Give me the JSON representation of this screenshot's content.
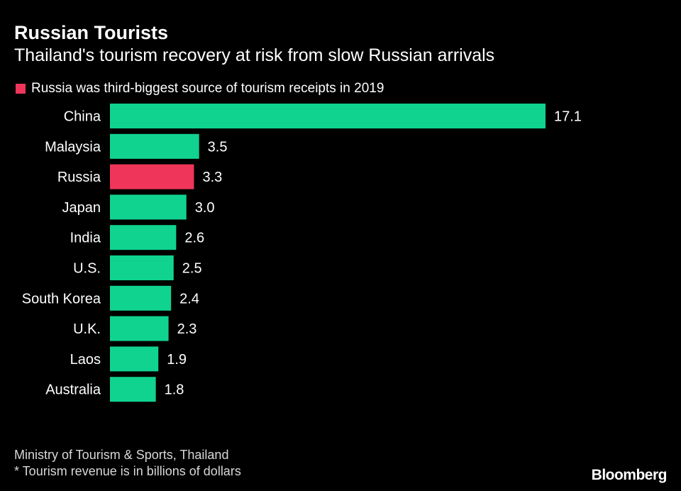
{
  "title": "Russian Tourists",
  "subtitle": "Thailand's tourism recovery at risk from slow Russian arrivals",
  "legend": {
    "label": "Russia was third-biggest source of tourism receipts in 2019",
    "color": "#f0355a"
  },
  "footer": {
    "source": "Ministry of Tourism & Sports, Thailand",
    "note": "* Tourism revenue is in billions of dollars",
    "logo": "Bloomberg"
  },
  "colors": {
    "default_bar": "#10d38f",
    "highlight_bar": "#f0355a",
    "background": "#000000"
  },
  "chart_data": {
    "type": "bar",
    "orientation": "horizontal",
    "categories": [
      "China",
      "Malaysia",
      "Russia",
      "Japan",
      "India",
      "U.S.",
      "South Korea",
      "U.K.",
      "Laos",
      "Australia"
    ],
    "values": [
      17.1,
      3.5,
      3.3,
      3.0,
      2.6,
      2.5,
      2.4,
      2.3,
      1.9,
      1.8
    ],
    "value_labels": [
      "17.1",
      "3.5",
      "3.3",
      "3.0",
      "2.6",
      "2.5",
      "2.4",
      "2.3",
      "1.9",
      "1.8"
    ],
    "highlight": "Russia",
    "xlim": [
      0,
      17.1
    ],
    "grid": false
  }
}
